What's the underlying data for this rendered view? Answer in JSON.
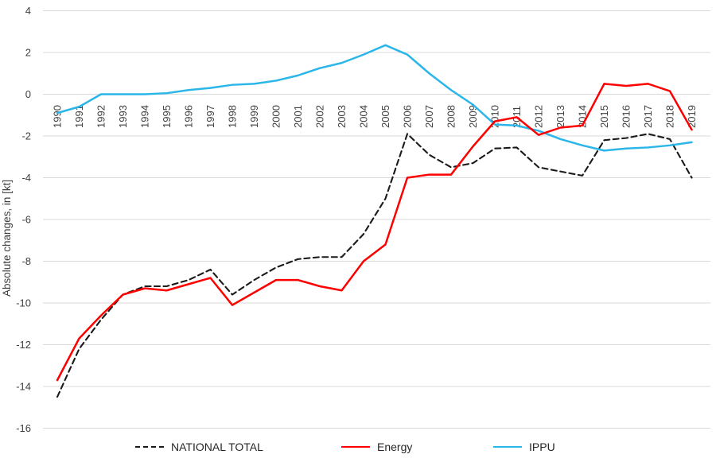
{
  "chart_data": {
    "type": "line",
    "title": "",
    "xlabel": "",
    "ylabel": "Absolute changes, in [kt]",
    "ylim": [
      -16,
      4
    ],
    "yticks": [
      4,
      2,
      0,
      -2,
      -4,
      -6,
      -8,
      -10,
      -12,
      -14,
      -16
    ],
    "grid": "horizontal-light-gray",
    "legend_position": "bottom",
    "x": [
      "1990",
      "1991",
      "1992",
      "1993",
      "1994",
      "1995",
      "1996",
      "1997",
      "1998",
      "1999",
      "2000",
      "2001",
      "2002",
      "2003",
      "2004",
      "2005",
      "2006",
      "2007",
      "2008",
      "2009",
      "2010",
      "2011",
      "2012",
      "2013",
      "2014",
      "2015",
      "2016",
      "2017",
      "2018",
      "2019"
    ],
    "series": [
      {
        "name": "NATIONAL TOTAL",
        "color": "#1a1a1a",
        "line_style": "dashed",
        "values": [
          -14.5,
          -12.2,
          -10.8,
          -9.6,
          -9.2,
          -9.2,
          -8.9,
          -8.4,
          -9.6,
          -8.9,
          -8.3,
          -7.9,
          -7.8,
          -7.8,
          -6.7,
          -5.0,
          -1.9,
          -2.9,
          -3.5,
          -3.3,
          -2.6,
          -2.55,
          -3.5,
          -3.7,
          -3.9,
          -2.2,
          -2.1,
          -1.9,
          -2.15,
          -4.0
        ]
      },
      {
        "name": "Energy",
        "color": "#fe0000",
        "line_style": "solid",
        "values": [
          -13.7,
          -11.7,
          -10.6,
          -9.6,
          -9.3,
          -9.4,
          -9.1,
          -8.8,
          -10.1,
          -9.5,
          -8.9,
          -8.9,
          -9.2,
          -9.4,
          -8.0,
          -7.2,
          -4.0,
          -3.85,
          -3.85,
          -2.5,
          -1.3,
          -1.1,
          -1.95,
          -1.6,
          -1.5,
          0.5,
          0.4,
          0.5,
          0.15,
          -1.7
        ]
      },
      {
        "name": "IPPU",
        "color": "#2bb6ea",
        "line_style": "solid",
        "values": [
          -0.9,
          -0.6,
          0.0,
          0.0,
          0.0,
          0.05,
          0.2,
          0.3,
          0.45,
          0.5,
          0.65,
          0.9,
          1.25,
          1.5,
          1.9,
          2.35,
          1.9,
          1.0,
          0.2,
          -0.5,
          -1.45,
          -1.5,
          -1.75,
          -2.15,
          -2.45,
          -2.7,
          -2.6,
          -2.55,
          -2.45,
          -2.3
        ]
      }
    ]
  }
}
